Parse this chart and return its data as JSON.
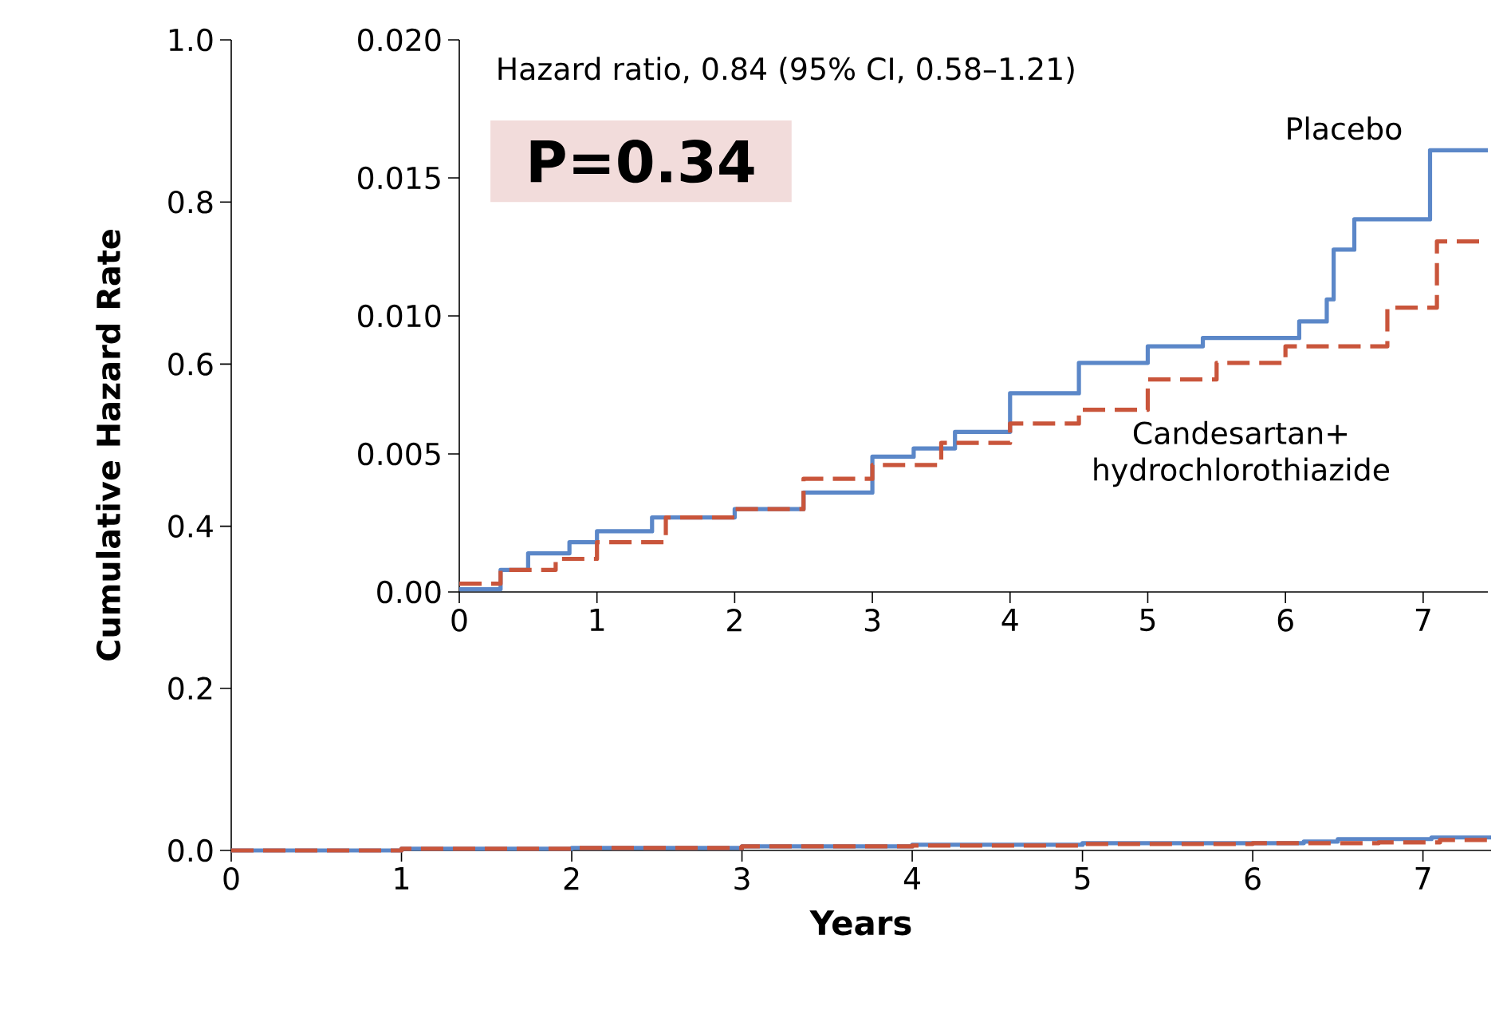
{
  "chart_data": [
    {
      "type": "step",
      "xlabel": "Years",
      "ylabel": "Cumulative Hazard Rate",
      "xlim": [
        0,
        7.4
      ],
      "ylim": [
        0,
        1.0
      ],
      "xticks": [
        0,
        1,
        2,
        3,
        4,
        5,
        6,
        7
      ],
      "yticks": [
        {
          "value": 0,
          "label": "0.0"
        },
        {
          "value": 0.2,
          "label": "0.2"
        },
        {
          "value": 0.4,
          "label": "0.4"
        },
        {
          "value": 0.6,
          "label": "0.6"
        },
        {
          "value": 0.8,
          "label": "0.8"
        },
        {
          "value": 1.0,
          "label": "1.0"
        }
      ],
      "series": [
        {
          "color": "#5b87c8",
          "line_style": "solid",
          "x": [
            0,
            1,
            2,
            3,
            4,
            5,
            6.3,
            6.5,
            7.05,
            7.4
          ],
          "values": [
            0.0,
            0.002,
            0.003,
            0.005,
            0.007,
            0.009,
            0.011,
            0.014,
            0.016,
            0.016
          ]
        },
        {
          "color": "#c9553b",
          "line_style": "dashed",
          "x": [
            0,
            1,
            2,
            3,
            4,
            5,
            6,
            6.74,
            7.1,
            7.4
          ],
          "values": [
            0.0,
            0.002,
            0.003,
            0.005,
            0.006,
            0.008,
            0.009,
            0.01,
            0.013,
            0.013
          ]
        }
      ]
    },
    {
      "type": "step",
      "xlim": [
        0,
        7.47
      ],
      "ylim": [
        0,
        0.02
      ],
      "xticks": [
        0,
        1,
        2,
        3,
        4,
        5,
        6,
        7
      ],
      "yticks": [
        {
          "value": 0,
          "label": "0.00"
        },
        {
          "value": 0.005,
          "label": "0.005"
        },
        {
          "value": 0.01,
          "label": "0.010"
        },
        {
          "value": 0.015,
          "label": "0.015"
        },
        {
          "value": 0.02,
          "label": "0.020"
        }
      ],
      "annotations": [
        "Hazard ratio, 0.84 (95% CI, 0.58–1.21)",
        "P=0.34"
      ],
      "series": [
        {
          "name": "Placebo",
          "color": "#5b87c8",
          "line_style": "solid",
          "x": [
            0,
            0.3,
            0.5,
            0.8,
            1,
            1.4,
            2,
            2.5,
            3,
            3.3,
            3.6,
            4,
            4.5,
            5,
            5.4,
            6.1,
            6.3,
            6.35,
            6.5,
            7.05,
            7.47
          ],
          "values": [
            0.0001,
            0.0008,
            0.0014,
            0.0018,
            0.0022,
            0.0027,
            0.003,
            0.0036,
            0.0049,
            0.0052,
            0.0058,
            0.0072,
            0.0083,
            0.0089,
            0.0092,
            0.0098,
            0.0106,
            0.0124,
            0.0135,
            0.016,
            0.016
          ]
        },
        {
          "name": "Candesartan+ hydrochlorothiazide",
          "color": "#c9553b",
          "line_style": "dashed",
          "x": [
            0,
            0.3,
            0.7,
            1,
            1.5,
            2,
            2.5,
            3,
            3.5,
            4,
            4.5,
            5,
            5.5,
            6,
            6.74,
            7.1,
            7.47
          ],
          "values": [
            0.0003,
            0.0008,
            0.0012,
            0.0018,
            0.0027,
            0.003,
            0.0041,
            0.0046,
            0.0054,
            0.0061,
            0.0066,
            0.0077,
            0.0083,
            0.0089,
            0.0103,
            0.0127,
            0.0127
          ]
        }
      ]
    }
  ]
}
